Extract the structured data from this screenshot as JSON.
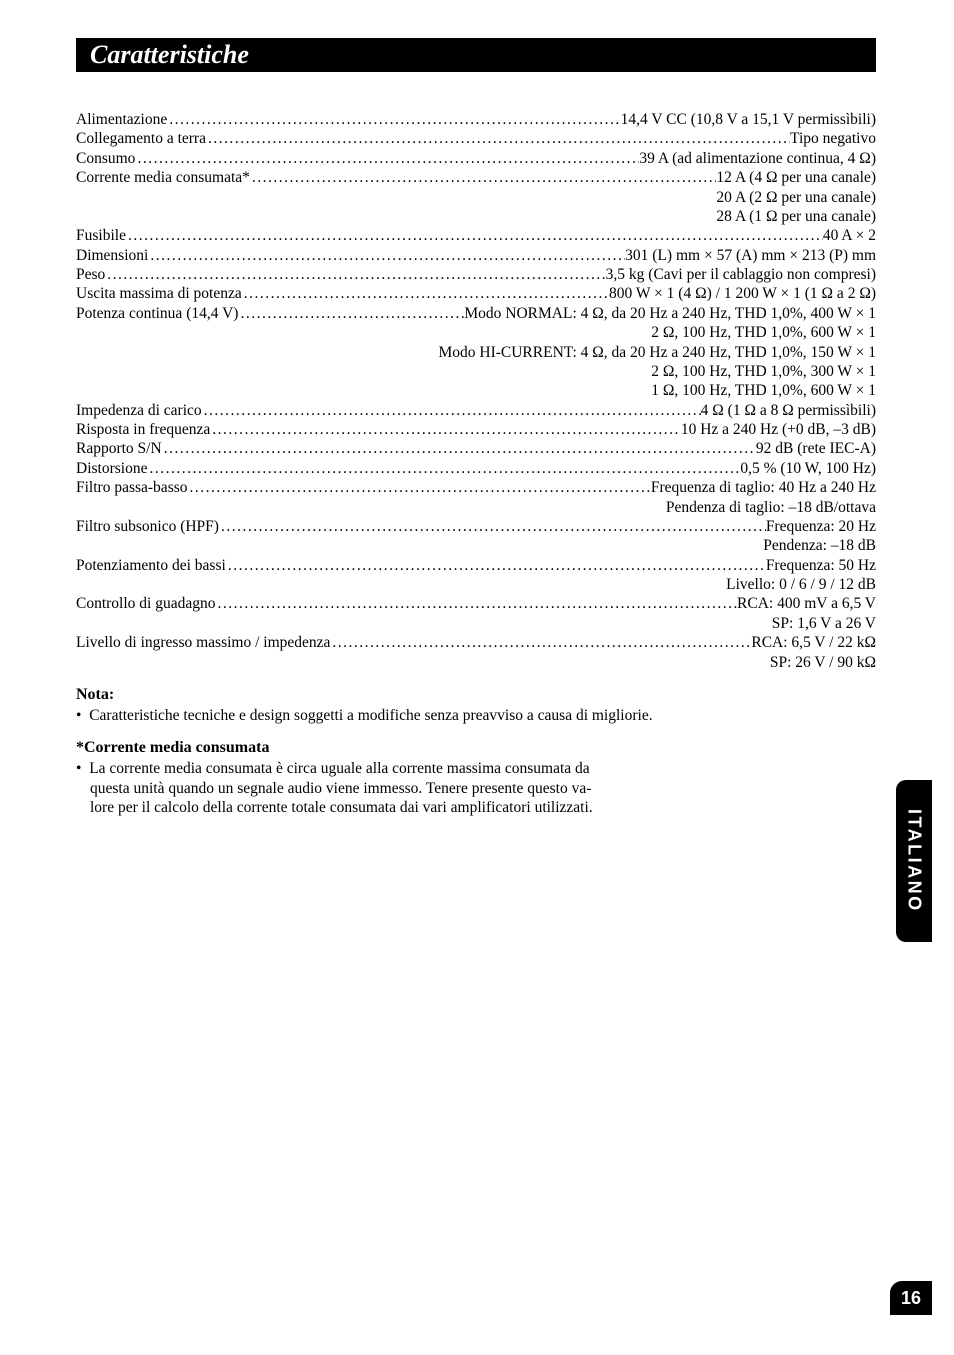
{
  "header": {
    "title": "Caratteristiche"
  },
  "specs": [
    {
      "type": "dotted",
      "label": "Alimentazione",
      "value": "14,4 V CC (10,8 V a 15,1 V permissìbili)"
    },
    {
      "type": "dotted",
      "label": "Collegamento a terra",
      "value": "Tipo negativo"
    },
    {
      "type": "dotted",
      "label": "Consumo",
      "value": "39 A (ad alimentazione continua, 4 Ω)"
    },
    {
      "type": "dotted",
      "label": "Corrente media consumata*",
      "value": "12 A (4 Ω  per una canale)"
    },
    {
      "type": "right",
      "value": "20 A (2 Ω  per una canale)"
    },
    {
      "type": "right",
      "value": "28 A (1 Ω  per una canale)"
    },
    {
      "type": "dotted",
      "label": "Fusibile",
      "value": "40 A × 2"
    },
    {
      "type": "dotted",
      "label": "Dimensioni",
      "value": "301 (L) mm × 57 (A) mm × 213 (P) mm"
    },
    {
      "type": "dotted",
      "label": "Peso",
      "value": "3,5 kg (Cavi per il cablaggio non compresi)"
    },
    {
      "type": "dotted",
      "label": "Uscita massima di potenza",
      "value": "800 W × 1 (4 Ω) / 1 200 W × 1 (1 Ω a 2 Ω)"
    },
    {
      "type": "dotted",
      "label": "Potenza continua (14,4 V)",
      "value": "Modo NORMAL: 4 Ω, da 20 Hz a 240 Hz, THD 1,0%, 400 W × 1"
    },
    {
      "type": "right",
      "value": "2 Ω, 100 Hz, THD 1,0%, 600 W × 1"
    },
    {
      "type": "right",
      "value": "Modo HI-CURRENT: 4 Ω, da 20 Hz a 240 Hz, THD 1,0%, 150 W × 1"
    },
    {
      "type": "right",
      "value": "2 Ω, 100 Hz, THD 1,0%, 300 W × 1"
    },
    {
      "type": "right",
      "value": "1 Ω, 100 Hz, THD 1,0%, 600 W × 1"
    },
    {
      "type": "dotted",
      "label": "Impedenza di carico",
      "value": "4 Ω (1 Ω a 8 Ω permissìbili)"
    },
    {
      "type": "dotted",
      "label": "Risposta in frequenza",
      "value": "10 Hz a 240 Hz (+0 dB, –3 dB)"
    },
    {
      "type": "dotted",
      "label": "Rapporto S/N",
      "value": "92 dB (rete IEC-A)"
    },
    {
      "type": "dotted",
      "label": "Distorsione",
      "value": "0,5 % (10 W, 100 Hz)"
    },
    {
      "type": "dotted",
      "label": "Filtro passa-basso",
      "value": "Frequenza di taglio: 40 Hz a 240 Hz"
    },
    {
      "type": "right",
      "value": "Pendenza di taglio: –18 dB/ottava"
    },
    {
      "type": "dotted",
      "label": "Filtro subsonico (HPF)",
      "value": "Frequenza: 20 Hz"
    },
    {
      "type": "right",
      "value": "Pendenza: –18 dB"
    },
    {
      "type": "dotted",
      "label": "Potenziamento dei bassi",
      "value": "Frequenza: 50 Hz"
    },
    {
      "type": "right",
      "value": "Livello: 0 / 6 / 9 / 12 dB"
    },
    {
      "type": "dotted",
      "label": "Controllo di guadagno",
      "value": "RCA: 400 mV a 6,5 V"
    },
    {
      "type": "right",
      "value": "SP: 1,6 V a 26 V"
    },
    {
      "type": "dotted",
      "label": "Livello di ingresso massimo / impedenza",
      "value": "RCA: 6,5 V / 22 kΩ"
    },
    {
      "type": "right",
      "value": "SP: 26 V / 90 kΩ"
    }
  ],
  "nota": {
    "heading": "Nota:",
    "bullet": "Caratteristiche tecniche e design soggetti a modifiche senza preavviso a causa di migliorie."
  },
  "corrente": {
    "heading": "*Corrente media consumata",
    "l1": "La corrente media consumata è circa uguale alla corrente massima consumata da",
    "l2": "questa unità quando un segnale audio viene immesso. Tenere presente questo va-",
    "l3": "lore per il calcolo della corrente totale consumata dai vari amplificatori utilizzati."
  },
  "sideTab": "ITALIANO",
  "pageNumber": "16",
  "dotFill": "........................................................................................................................................................................................................................................................"
}
